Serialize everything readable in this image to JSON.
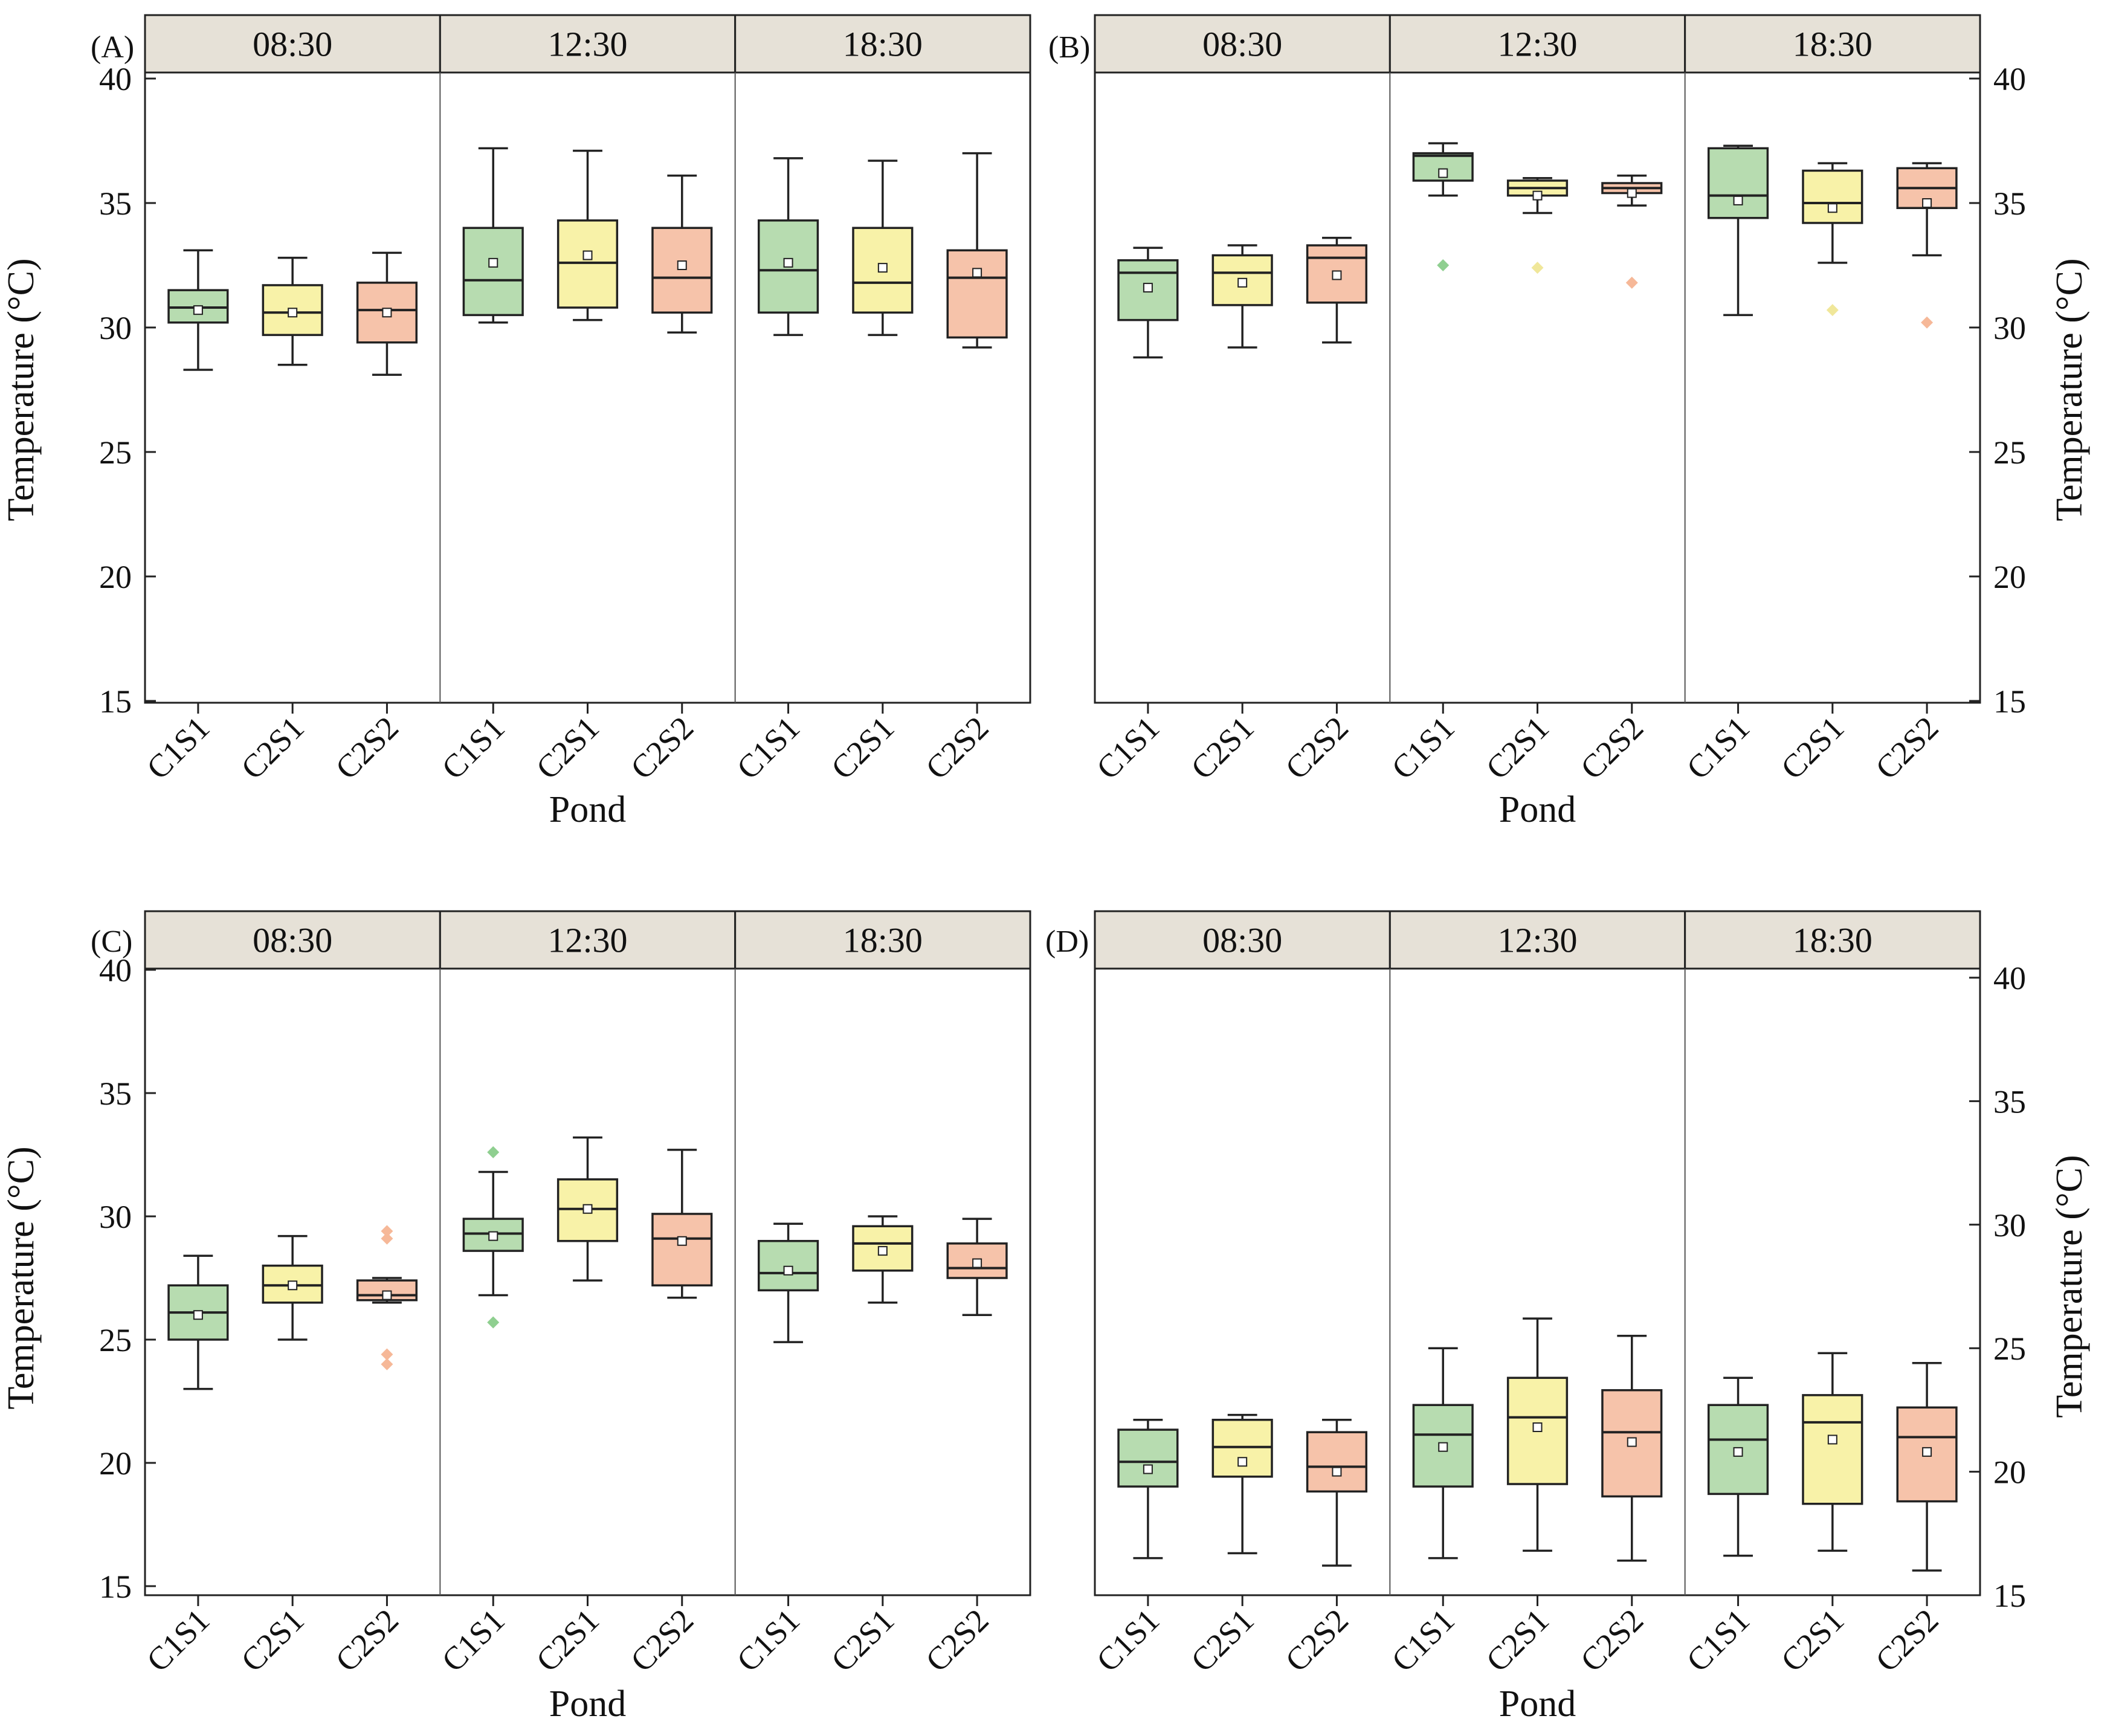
{
  "colors": {
    "C1S1": "#b7dcb0",
    "C2S1": "#f8f2a8",
    "C2S2": "#f6c3aa",
    "outlier_C1S1": "#8fcf90",
    "outlier_C2S1": "#f0e79a",
    "outlier_C2S2": "#f6b898",
    "strip": "#e6e1d7",
    "frame": "#222222"
  },
  "chart_data": [
    {
      "type": "box",
      "panel_label": "(A)",
      "xlabel": "Pond",
      "ylabel": "Temperature (°C)",
      "ylim": [
        15,
        40
      ],
      "yticks": [
        15,
        20,
        25,
        30,
        35,
        40
      ],
      "y_axis_side": "left",
      "facets": [
        "08:30",
        "12:30",
        "18:30"
      ],
      "categories": [
        "C1S1",
        "C2S1",
        "C2S2"
      ],
      "boxes": [
        [
          {
            "min": 28.3,
            "q1": 30.2,
            "median": 30.8,
            "q3": 31.5,
            "max": 33.1,
            "mean": 30.7,
            "outliers": []
          },
          {
            "min": 28.5,
            "q1": 29.7,
            "median": 30.6,
            "q3": 31.7,
            "max": 32.8,
            "mean": 30.6,
            "outliers": []
          },
          {
            "min": 28.1,
            "q1": 29.4,
            "median": 30.7,
            "q3": 31.8,
            "max": 33.0,
            "mean": 30.6,
            "outliers": []
          }
        ],
        [
          {
            "min": 30.2,
            "q1": 30.5,
            "median": 31.9,
            "q3": 34.0,
            "max": 37.2,
            "mean": 32.6,
            "outliers": []
          },
          {
            "min": 30.3,
            "q1": 30.8,
            "median": 32.6,
            "q3": 34.3,
            "max": 37.1,
            "mean": 32.9,
            "outliers": []
          },
          {
            "min": 29.8,
            "q1": 30.6,
            "median": 32.0,
            "q3": 34.0,
            "max": 36.1,
            "mean": 32.5,
            "outliers": []
          }
        ],
        [
          {
            "min": 29.7,
            "q1": 30.6,
            "median": 32.3,
            "q3": 34.3,
            "max": 36.8,
            "mean": 32.6,
            "outliers": []
          },
          {
            "min": 29.7,
            "q1": 30.6,
            "median": 31.8,
            "q3": 34.0,
            "max": 36.7,
            "mean": 32.4,
            "outliers": []
          },
          {
            "min": 29.2,
            "q1": 29.6,
            "median": 32.0,
            "q3": 33.1,
            "max": 37.0,
            "mean": 32.2,
            "outliers": []
          }
        ]
      ]
    },
    {
      "type": "box",
      "panel_label": "(B)",
      "xlabel": "Pond",
      "ylabel": "Temperature (°C)",
      "ylim": [
        15,
        40
      ],
      "yticks": [
        15,
        20,
        25,
        30,
        35,
        40
      ],
      "y_axis_side": "right",
      "facets": [
        "08:30",
        "12:30",
        "18:30"
      ],
      "categories": [
        "C1S1",
        "C2S1",
        "C2S2"
      ],
      "boxes": [
        [
          {
            "min": 28.8,
            "q1": 30.3,
            "median": 32.2,
            "q3": 32.7,
            "max": 33.2,
            "mean": 31.6,
            "outliers": []
          },
          {
            "min": 29.2,
            "q1": 30.9,
            "median": 32.2,
            "q3": 32.9,
            "max": 33.3,
            "mean": 31.8,
            "outliers": []
          },
          {
            "min": 29.4,
            "q1": 31.0,
            "median": 32.8,
            "q3": 33.3,
            "max": 33.6,
            "mean": 32.1,
            "outliers": []
          }
        ],
        [
          {
            "min": 35.3,
            "q1": 35.9,
            "median": 36.9,
            "q3": 37.0,
            "max": 37.4,
            "mean": 36.2,
            "outliers": [
              32.5
            ]
          },
          {
            "min": 34.6,
            "q1": 35.3,
            "median": 35.6,
            "q3": 35.9,
            "max": 36.0,
            "mean": 35.3,
            "outliers": [
              32.4
            ]
          },
          {
            "min": 34.9,
            "q1": 35.4,
            "median": 35.6,
            "q3": 35.8,
            "max": 36.1,
            "mean": 35.4,
            "outliers": [
              31.8
            ]
          }
        ],
        [
          {
            "min": 30.5,
            "q1": 34.4,
            "median": 35.3,
            "q3": 37.2,
            "max": 37.3,
            "mean": 35.1,
            "outliers": []
          },
          {
            "min": 32.6,
            "q1": 34.2,
            "median": 35.0,
            "q3": 36.3,
            "max": 36.6,
            "mean": 34.8,
            "outliers": [
              30.7
            ]
          },
          {
            "min": 32.9,
            "q1": 34.8,
            "median": 35.6,
            "q3": 36.4,
            "max": 36.6,
            "mean": 35.0,
            "outliers": [
              30.2
            ]
          }
        ]
      ]
    },
    {
      "type": "box",
      "panel_label": "(C)",
      "xlabel": "Pond",
      "ylabel": "Temperature (°C)",
      "ylim": [
        15,
        40
      ],
      "yticks": [
        15,
        20,
        25,
        30,
        35,
        40
      ],
      "y_axis_side": "left",
      "facets": [
        "08:30",
        "12:30",
        "18:30"
      ],
      "categories": [
        "C1S1",
        "C2S1",
        "C2S2"
      ],
      "boxes": [
        [
          {
            "min": 23.0,
            "q1": 25.0,
            "median": 26.1,
            "q3": 27.2,
            "max": 28.4,
            "mean": 26.0,
            "outliers": []
          },
          {
            "min": 25.0,
            "q1": 26.5,
            "median": 27.2,
            "q3": 28.0,
            "max": 29.2,
            "mean": 27.2,
            "outliers": []
          },
          {
            "min": 26.5,
            "q1": 26.6,
            "median": 26.8,
            "q3": 27.4,
            "max": 27.5,
            "mean": 26.8,
            "outliers": [
              29.4,
              29.1,
              24.4,
              24.0
            ]
          }
        ],
        [
          {
            "min": 26.8,
            "q1": 28.6,
            "median": 29.3,
            "q3": 29.9,
            "max": 31.8,
            "mean": 29.2,
            "outliers": [
              32.6,
              25.7
            ]
          },
          {
            "min": 27.4,
            "q1": 29.0,
            "median": 30.3,
            "q3": 31.5,
            "max": 33.2,
            "mean": 30.3,
            "outliers": []
          },
          {
            "min": 26.7,
            "q1": 27.2,
            "median": 29.1,
            "q3": 30.1,
            "max": 32.7,
            "mean": 29.0,
            "outliers": []
          }
        ],
        [
          {
            "min": 24.9,
            "q1": 27.0,
            "median": 27.7,
            "q3": 29.0,
            "max": 29.7,
            "mean": 27.8,
            "outliers": []
          },
          {
            "min": 26.5,
            "q1": 27.8,
            "median": 28.9,
            "q3": 29.6,
            "max": 30.0,
            "mean": 28.6,
            "outliers": []
          },
          {
            "min": 26.0,
            "q1": 27.5,
            "median": 27.9,
            "q3": 28.9,
            "max": 29.9,
            "mean": 28.1,
            "outliers": []
          }
        ]
      ]
    },
    {
      "type": "box",
      "panel_label": "(D)",
      "xlabel": "Pond",
      "ylabel": "Temperature (°C)",
      "ylim": [
        15,
        40
      ],
      "yticks": [
        15,
        20,
        25,
        30,
        35,
        40
      ],
      "y_axis_side": "right",
      "facets": [
        "08:30",
        "12:30",
        "18:30"
      ],
      "categories": [
        "C1S1",
        "C2S1",
        "C2S2"
      ],
      "boxes": [
        [
          {
            "min": 16.5,
            "q1": 19.4,
            "median": 20.4,
            "q3": 21.7,
            "max": 22.1,
            "mean": 20.1,
            "outliers": []
          },
          {
            "min": 16.7,
            "q1": 19.8,
            "median": 21.0,
            "q3": 22.1,
            "max": 22.3,
            "mean": 20.4,
            "outliers": []
          },
          {
            "min": 16.2,
            "q1": 19.2,
            "median": 20.2,
            "q3": 21.6,
            "max": 22.1,
            "mean": 20.0,
            "outliers": []
          }
        ],
        [
          {
            "min": 16.5,
            "q1": 19.4,
            "median": 21.5,
            "q3": 22.7,
            "max": 25.0,
            "mean": 21.0,
            "outliers": []
          },
          {
            "min": 16.8,
            "q1": 19.5,
            "median": 22.2,
            "q3": 23.8,
            "max": 26.2,
            "mean": 21.8,
            "outliers": []
          },
          {
            "min": 16.4,
            "q1": 19.0,
            "median": 21.6,
            "q3": 23.3,
            "max": 25.5,
            "mean": 21.2,
            "outliers": []
          }
        ],
        [
          {
            "min": 16.6,
            "q1": 19.1,
            "median": 21.3,
            "q3": 22.7,
            "max": 23.8,
            "mean": 20.8,
            "outliers": []
          },
          {
            "min": 16.8,
            "q1": 18.7,
            "median": 22.0,
            "q3": 23.1,
            "max": 24.8,
            "mean": 21.3,
            "outliers": []
          },
          {
            "min": 16.0,
            "q1": 18.8,
            "median": 21.4,
            "q3": 22.6,
            "max": 24.4,
            "mean": 20.8,
            "outliers": []
          }
        ]
      ]
    }
  ]
}
